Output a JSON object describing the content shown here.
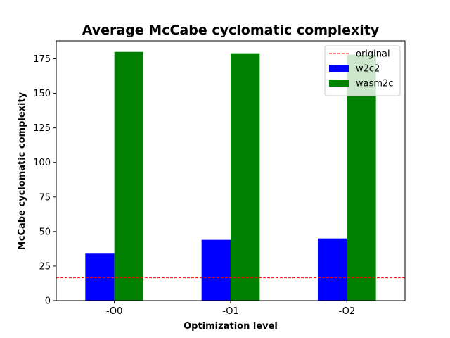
{
  "chart_data": {
    "type": "bar",
    "title": "Average McCabe cyclomatic complexity",
    "xlabel": "Optimization level",
    "ylabel": "McCabe cyclomatic complexity",
    "categories": [
      "-O0",
      "-O1",
      "-O2"
    ],
    "ylim": [
      0,
      188
    ],
    "yticks": [
      0,
      25,
      50,
      75,
      100,
      125,
      150,
      175
    ],
    "grid": false,
    "legend_position": "top-right",
    "series": [
      {
        "name": "w2c2",
        "values": [
          34,
          44,
          45
        ],
        "color": "#0000ff"
      },
      {
        "name": "wasm2c",
        "values": [
          180,
          179,
          178
        ],
        "color": "#008000"
      }
    ],
    "reference_lines": [
      {
        "name": "original",
        "y": 16.5,
        "color": "#ff0000",
        "style": "dashed"
      }
    ]
  }
}
